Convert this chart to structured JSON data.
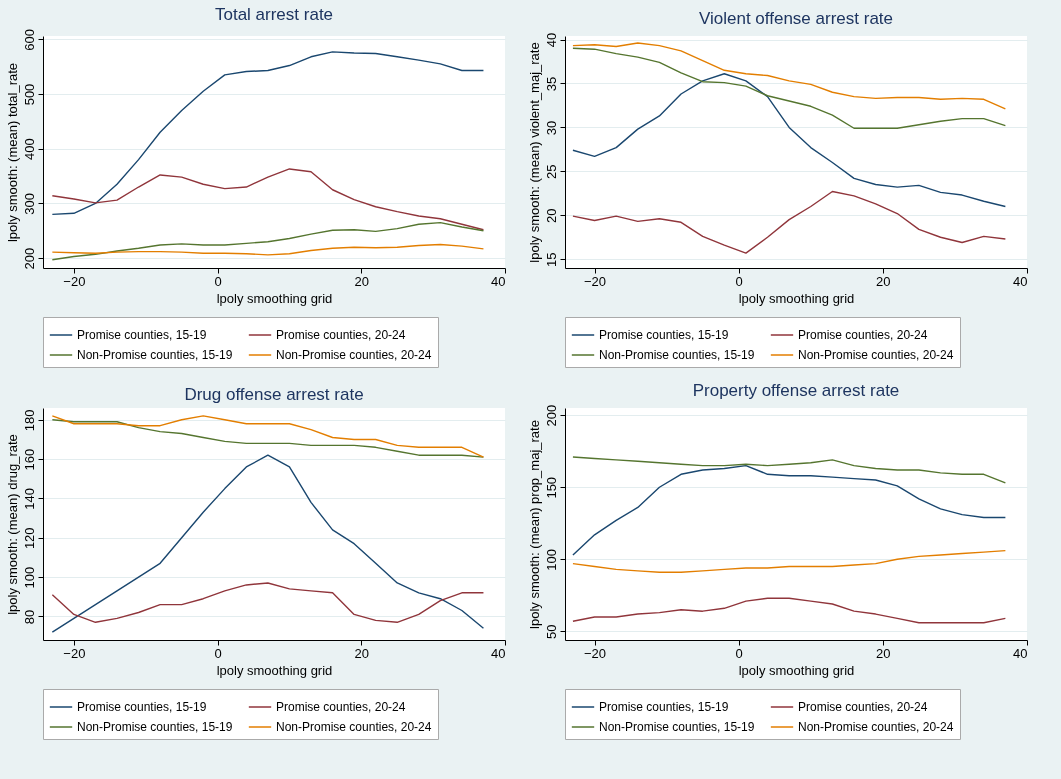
{
  "chart_data": [
    {
      "type": "line",
      "title": "Total arrest rate",
      "xlabel": "lpoly smoothing grid",
      "ylabel": "lpoly smooth: (mean) total_rate",
      "xlim": [
        -24.3,
        40
      ],
      "xticks": [
        -20,
        0,
        20,
        40
      ],
      "ylim": [
        182,
        606
      ],
      "yticks": [
        200,
        300,
        400,
        500,
        600
      ],
      "grid": "y",
      "legend": "bottom",
      "x": [
        -23,
        -20,
        -17,
        -14,
        -11,
        -8,
        -5,
        -2,
        1,
        4,
        7,
        10,
        13,
        16,
        19,
        22,
        25,
        28,
        31,
        34,
        37
      ],
      "series": [
        {
          "name": "Promise counties, 15-19",
          "color": "#1a476f",
          "values": [
            280,
            282,
            300,
            335,
            380,
            430,
            470,
            505,
            535,
            541,
            543,
            552,
            568,
            577,
            575,
            574,
            568,
            562,
            555,
            543,
            543
          ]
        },
        {
          "name": "Promise counties, 20-24",
          "color": "#90353b",
          "values": [
            314,
            308,
            301,
            306,
            330,
            352,
            348,
            335,
            327,
            330,
            348,
            363,
            358,
            325,
            307,
            294,
            285,
            277,
            272,
            262,
            252
          ]
        },
        {
          "name": "Non-Promise counties, 15-19",
          "color": "#55752f",
          "values": [
            197,
            203,
            207,
            213,
            218,
            224,
            226,
            224,
            224,
            227,
            230,
            236,
            244,
            251,
            252,
            249,
            254,
            262,
            265,
            257,
            250
          ]
        },
        {
          "name": "Non-Promise counties, 20-24",
          "color": "#e37e00",
          "values": [
            211,
            210,
            209,
            211,
            212,
            212,
            211,
            209,
            209,
            208,
            206,
            208,
            214,
            218,
            220,
            219,
            220,
            223,
            225,
            222,
            217
          ]
        }
      ]
    },
    {
      "type": "line",
      "title": "Violent offense arrest rate",
      "xlabel": "lpoly smoothing grid",
      "ylabel": "lpoly smooth: (mean) violent_maj_rate",
      "xlim": [
        -24.1,
        40
      ],
      "xticks": [
        -20,
        0,
        20,
        40
      ],
      "ylim": [
        14,
        40.4
      ],
      "yticks": [
        15,
        20,
        25,
        30,
        35,
        40
      ],
      "grid": "y",
      "legend": "bottom",
      "x": [
        -23,
        -20,
        -17,
        -14,
        -11,
        -8,
        -5,
        -2,
        1,
        4,
        7,
        10,
        13,
        16,
        19,
        22,
        25,
        28,
        31,
        34,
        37
      ],
      "series": [
        {
          "name": "Promise counties, 15-19",
          "color": "#1a476f",
          "values": [
            27.4,
            26.7,
            27.7,
            29.8,
            31.3,
            33.8,
            35.3,
            36.1,
            35.3,
            33.5,
            30.0,
            27.7,
            26.0,
            24.2,
            23.5,
            23.2,
            23.4,
            22.6,
            22.3,
            21.6,
            21.0
          ]
        },
        {
          "name": "Promise counties, 20-24",
          "color": "#90353b",
          "values": [
            19.9,
            19.4,
            19.9,
            19.3,
            19.6,
            19.2,
            17.6,
            16.6,
            15.7,
            17.5,
            19.5,
            21.0,
            22.7,
            22.2,
            21.3,
            20.2,
            18.4,
            17.5,
            16.9,
            17.6,
            17.3
          ]
        },
        {
          "name": "Non-Promise counties, 15-19",
          "color": "#55752f",
          "values": [
            39.0,
            38.9,
            38.4,
            38.0,
            37.4,
            36.2,
            35.2,
            35.1,
            34.7,
            33.6,
            33.0,
            32.4,
            31.4,
            29.9,
            29.9,
            29.9,
            30.3,
            30.7,
            31.0,
            31.0,
            30.2
          ]
        },
        {
          "name": "Non-Promise counties, 20-24",
          "color": "#e37e00",
          "values": [
            39.3,
            39.4,
            39.2,
            39.6,
            39.3,
            38.7,
            37.6,
            36.5,
            36.1,
            35.9,
            35.3,
            34.9,
            34.0,
            33.5,
            33.3,
            33.4,
            33.4,
            33.2,
            33.3,
            33.2,
            32.1
          ]
        }
      ]
    },
    {
      "type": "line",
      "title": "Drug offense arrest rate",
      "xlabel": "lpoly smoothing grid",
      "ylabel": "lpoly smooth: (mean) drug_rate",
      "xlim": [
        -24.3,
        40
      ],
      "xticks": [
        -20,
        0,
        20,
        40
      ],
      "ylim": [
        68,
        186
      ],
      "yticks": [
        80,
        100,
        120,
        140,
        160,
        180
      ],
      "grid": "y",
      "legend": "bottom",
      "x": [
        -23,
        -20,
        -17,
        -14,
        -11,
        -8,
        -5,
        -2,
        1,
        4,
        7,
        10,
        13,
        16,
        19,
        22,
        25,
        28,
        31,
        34,
        37
      ],
      "series": [
        {
          "name": "Promise counties, 15-19",
          "color": "#1a476f",
          "values": [
            72,
            79,
            86,
            93,
            100,
            107,
            120,
            133,
            145,
            156,
            162,
            156,
            138,
            124,
            117,
            107,
            97,
            92,
            89,
            83,
            74
          ]
        },
        {
          "name": "Promise counties, 20-24",
          "color": "#90353b",
          "values": [
            91,
            81,
            77,
            79,
            82,
            86,
            86,
            89,
            93,
            96,
            97,
            94,
            93,
            92,
            81,
            78,
            77,
            81,
            88,
            92,
            92
          ]
        },
        {
          "name": "Non-Promise counties, 15-19",
          "color": "#55752f",
          "values": [
            180,
            179,
            179,
            179,
            176,
            174,
            173,
            171,
            169,
            168,
            168,
            168,
            167,
            167,
            167,
            166,
            164,
            162,
            162,
            162,
            161
          ]
        },
        {
          "name": "Non-Promise counties, 20-24",
          "color": "#e37e00",
          "values": [
            182,
            178,
            178,
            178,
            177,
            177,
            180,
            182,
            180,
            178,
            178,
            178,
            175,
            171,
            170,
            170,
            167,
            166,
            166,
            166,
            161
          ]
        }
      ]
    },
    {
      "type": "line",
      "title": "Property offense arrest rate",
      "xlabel": "lpoly smoothing grid",
      "ylabel": "lpoly smooth: (mean) prop_maj_rate",
      "xlim": [
        -24.1,
        40
      ],
      "xticks": [
        -20,
        0,
        20,
        40
      ],
      "ylim": [
        44,
        205
      ],
      "yticks": [
        50,
        100,
        150,
        200
      ],
      "grid": "y",
      "legend": "bottom",
      "x": [
        -23,
        -20,
        -17,
        -14,
        -11,
        -8,
        -5,
        -2,
        1,
        4,
        7,
        10,
        13,
        16,
        19,
        22,
        25,
        28,
        31,
        34,
        37
      ],
      "series": [
        {
          "name": "Promise counties, 15-19",
          "color": "#1a476f",
          "values": [
            103,
            117,
            127,
            136,
            150,
            159,
            162,
            163,
            165,
            159,
            158,
            158,
            157,
            156,
            155,
            151,
            142,
            135,
            131,
            129,
            129
          ]
        },
        {
          "name": "Promise counties, 20-24",
          "color": "#90353b",
          "values": [
            57,
            60,
            60,
            62,
            63,
            65,
            64,
            66,
            71,
            73,
            73,
            71,
            69,
            64,
            62,
            59,
            56,
            56,
            56,
            56,
            59
          ]
        },
        {
          "name": "Non-Promise counties, 15-19",
          "color": "#55752f",
          "values": [
            171,
            170,
            169,
            168,
            167,
            166,
            165,
            165,
            166,
            165,
            166,
            167,
            169,
            165,
            163,
            162,
            162,
            160,
            159,
            159,
            153
          ]
        },
        {
          "name": "Non-Promise counties, 20-24",
          "color": "#e37e00",
          "values": [
            97,
            95,
            93,
            92,
            91,
            91,
            92,
            93,
            94,
            94,
            95,
            95,
            95,
            96,
            97,
            100,
            102,
            103,
            104,
            105,
            106
          ]
        }
      ]
    }
  ]
}
